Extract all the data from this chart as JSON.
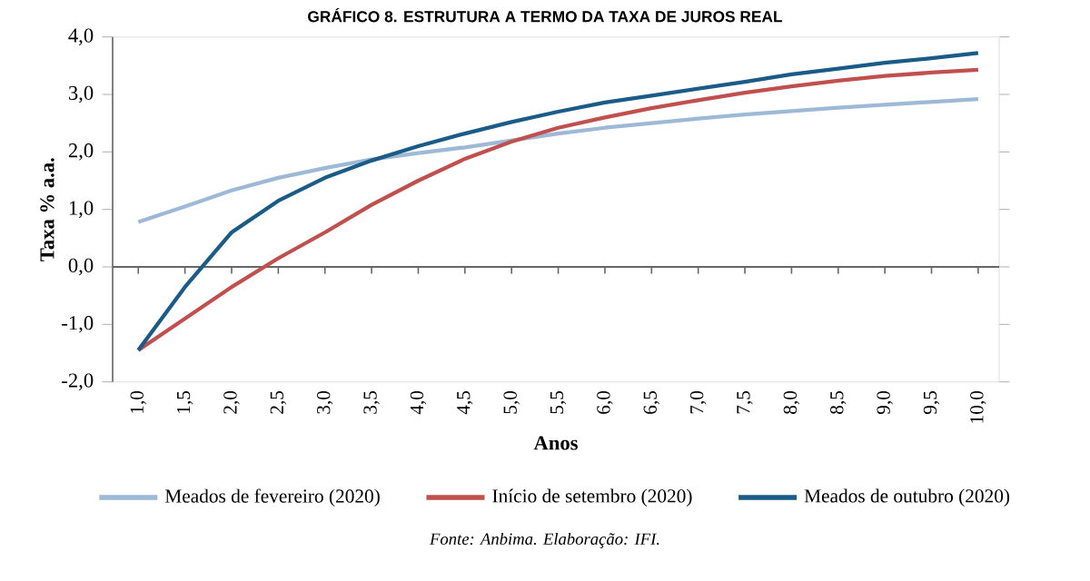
{
  "chart_data": {
    "type": "line",
    "title": "GRÁFICO 8. ESTRUTURA  A TERMO DA TAXA DE JUROS REAL",
    "xlabel": "Anos",
    "ylabel": "Taxa % a.a.",
    "categories": [
      "1,0",
      "1,5",
      "2,0",
      "2,5",
      "3,0",
      "3,5",
      "4,0",
      "4,5",
      "5,0",
      "5,5",
      "6,0",
      "6,5",
      "7,0",
      "7,5",
      "8,0",
      "8,5",
      "9,0",
      "9,5",
      "10,0"
    ],
    "series": [
      {
        "name": "Meados de fevereiro (2020)",
        "color": "#9db9d5",
        "values": [
          0.78,
          1.05,
          1.33,
          1.55,
          1.72,
          1.87,
          1.98,
          2.08,
          2.2,
          2.32,
          2.42,
          2.5,
          2.58,
          2.65,
          2.71,
          2.77,
          2.82,
          2.87,
          2.92
        ]
      },
      {
        "name": "Início de setembro (2020)",
        "color": "#c0504d",
        "values": [
          -1.45,
          -0.9,
          -0.35,
          0.15,
          0.6,
          1.08,
          1.5,
          1.88,
          2.18,
          2.42,
          2.6,
          2.76,
          2.9,
          3.03,
          3.14,
          3.24,
          3.32,
          3.38,
          3.43
        ]
      },
      {
        "name": "Meados de outubro (2020)",
        "color": "#1a5b87",
        "values": [
          -1.45,
          -0.35,
          0.6,
          1.15,
          1.55,
          1.85,
          2.1,
          2.32,
          2.52,
          2.7,
          2.86,
          2.98,
          3.1,
          3.22,
          3.35,
          3.45,
          3.55,
          3.63,
          3.72
        ]
      }
    ],
    "ylim": [
      -2,
      4
    ],
    "yticks": [
      {
        "value": -2,
        "label": "-2,0"
      },
      {
        "value": -1,
        "label": "-1,0"
      },
      {
        "value": 0,
        "label": "0,0"
      },
      {
        "value": 1,
        "label": "1,0"
      },
      {
        "value": 2,
        "label": "2,0"
      },
      {
        "value": 3,
        "label": "3,0"
      },
      {
        "value": 4,
        "label": "4,0"
      }
    ],
    "legend": "bottom",
    "annotations": [
      "Fonte: Anbima. Elaboração: IFI."
    ]
  }
}
